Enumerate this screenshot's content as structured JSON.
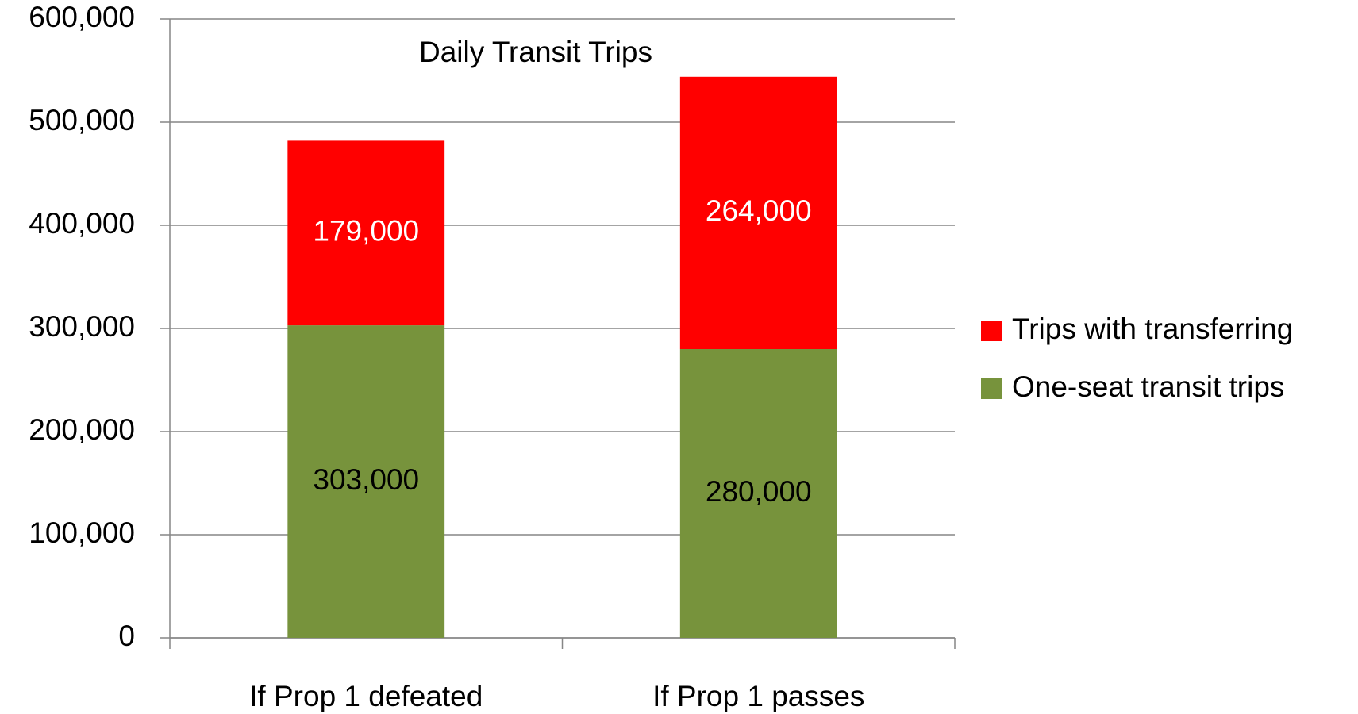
{
  "chart_data": {
    "type": "stacked_bar",
    "title": "Daily Transit Trips",
    "categories": [
      "If Prop 1 defeated",
      "If Prop 1 passes"
    ],
    "series": [
      {
        "name": "One-seat transit trips",
        "color": "#77933c",
        "label_color": "#000000",
        "values": [
          303000,
          280000
        ],
        "value_labels": [
          "303,000",
          "280,000"
        ]
      },
      {
        "name": "Trips with transferring",
        "color": "#ff0000",
        "label_color": "#ffffff",
        "values": [
          179000,
          264000
        ],
        "value_labels": [
          "179,000",
          "264,000"
        ]
      }
    ],
    "ylim": [
      0,
      600000
    ],
    "yticks": [
      0,
      {
        "value": 100000,
        "label": "100,000"
      },
      {
        "value": 200000,
        "label": "200,000"
      },
      {
        "value": 300000,
        "label": "300,000"
      },
      {
        "value": 400000,
        "label": "400,000"
      },
      {
        "value": 500000,
        "label": "500,000"
      },
      {
        "value": 600000,
        "label": "600,000"
      }
    ],
    "grid": true,
    "legend": "right"
  }
}
